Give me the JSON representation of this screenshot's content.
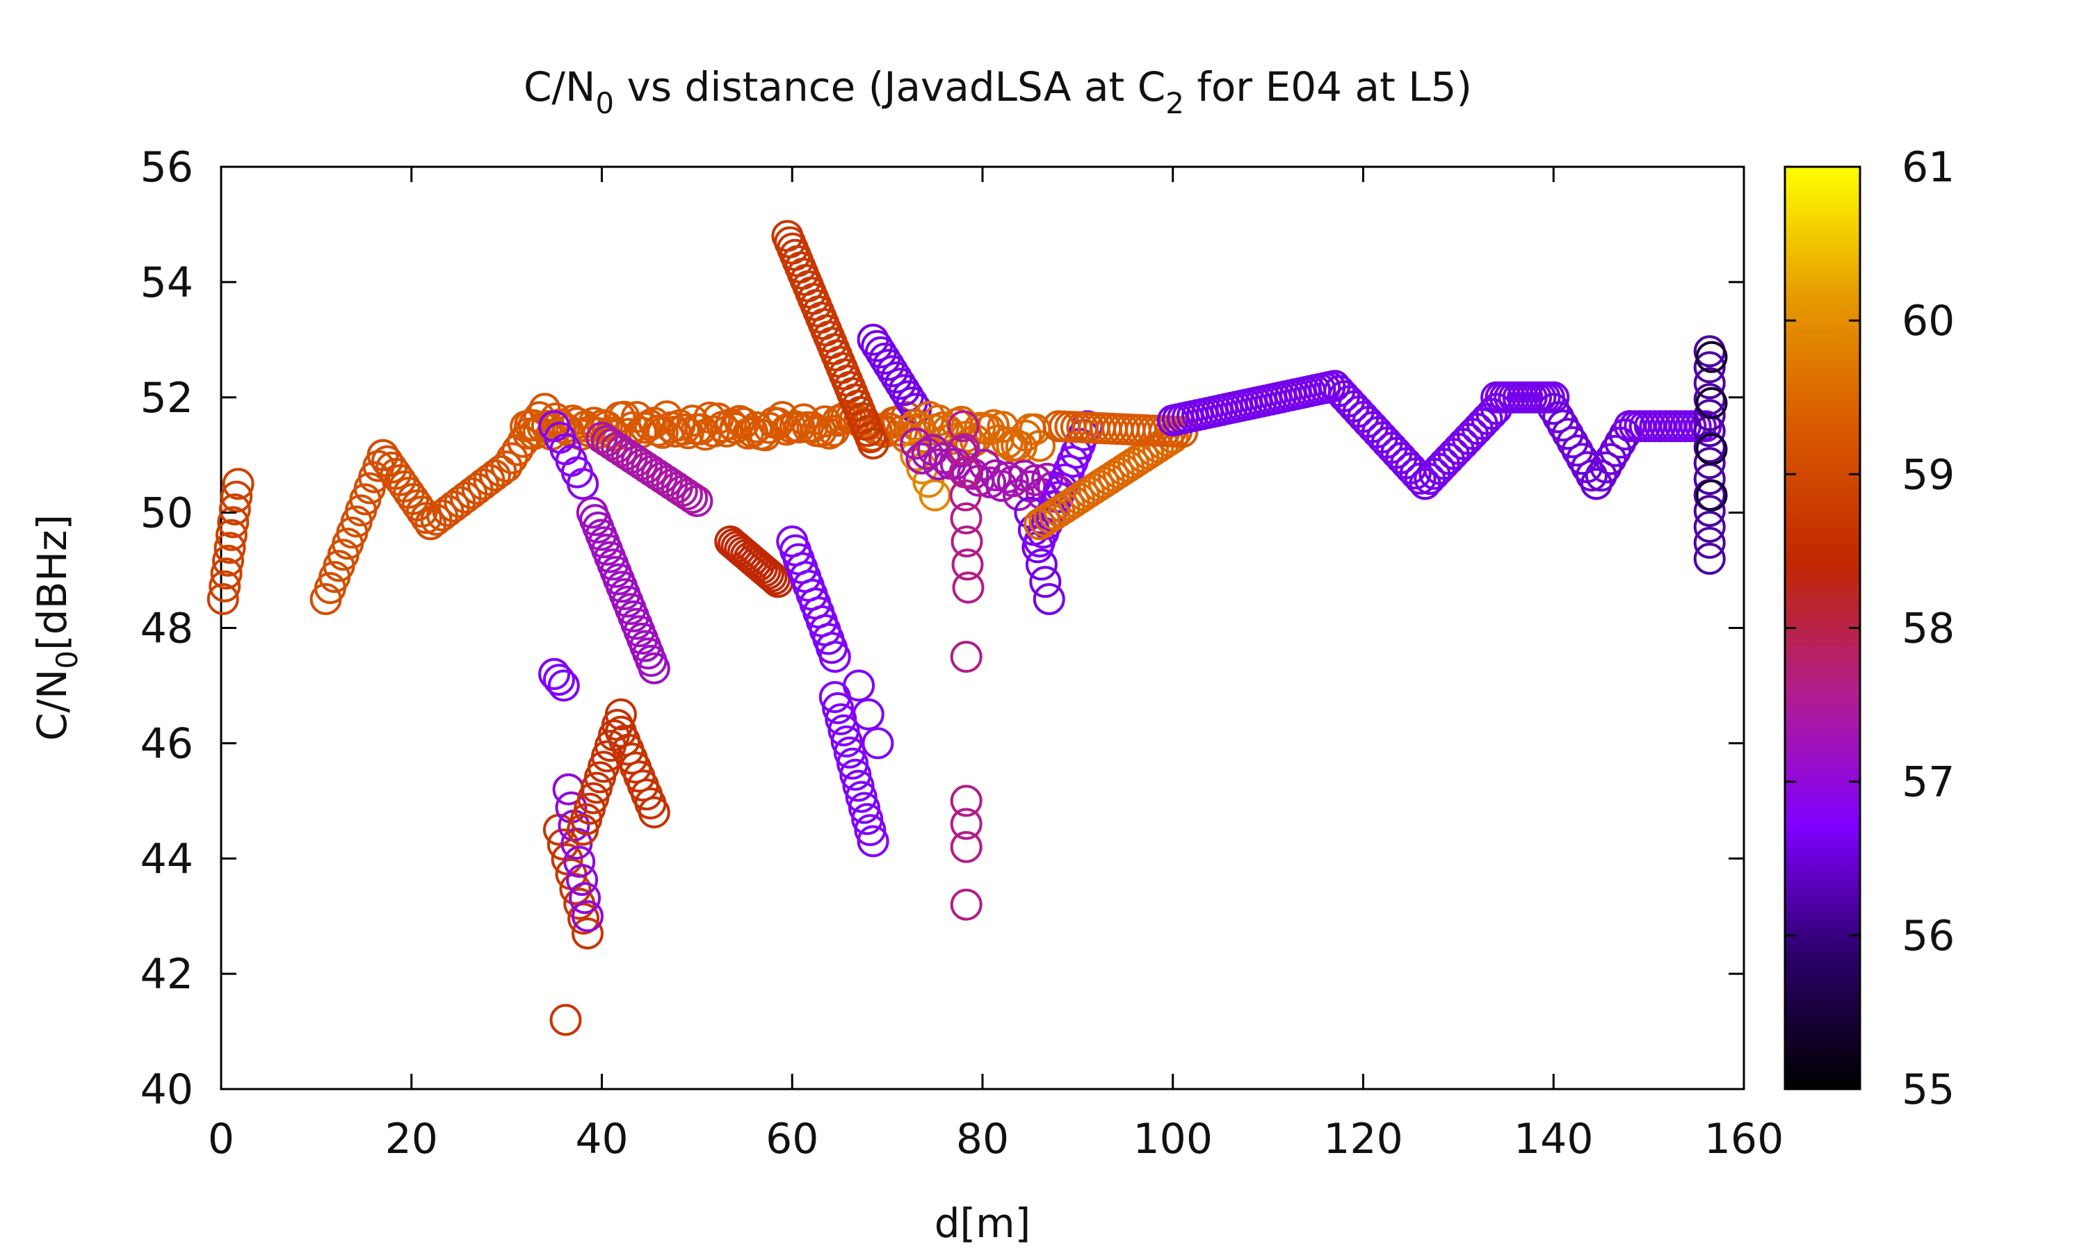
{
  "chart_data": {
    "type": "scatter",
    "title": {
      "main": "C/N",
      "main_sub": "0",
      "middle": " vs distance (JavadLSA at C",
      "middle_sub": "2",
      "end": " for E04 at L5)"
    },
    "xlabel": "d[m]",
    "ylabel": {
      "main": "C/N",
      "sub": "0",
      "unit": "[dBHz]"
    },
    "xlim": [
      0,
      160
    ],
    "ylim": [
      40,
      56
    ],
    "x_ticks": [
      "0",
      "20",
      "40",
      "60",
      "80",
      "100",
      "120",
      "140",
      "160"
    ],
    "y_ticks": [
      "40",
      "42",
      "44",
      "46",
      "48",
      "50",
      "52",
      "54",
      "56"
    ],
    "colorbar": {
      "range": [
        55,
        61
      ],
      "ticks": [
        "55",
        "56",
        "57",
        "58",
        "59",
        "60",
        "61"
      ],
      "palette": [
        "#000000",
        "#2a0068",
        "#8000ff",
        "#b21d8f",
        "#c02800",
        "#d85800",
        "#e69900",
        "#ffff00"
      ]
    },
    "marker": "open-circle",
    "grid": false,
    "legend": "none",
    "segments": [
      {
        "x0": 0.2,
        "x1": 1.8,
        "y0": 48.5,
        "y1": 50.5,
        "n": 10,
        "c": 58.9
      },
      {
        "x0": 11,
        "x1": 17,
        "y0": 48.5,
        "y1": 51,
        "n": 14,
        "c": 59.1
      },
      {
        "x0": 17,
        "x1": 22,
        "y0": 51,
        "y1": 49.8,
        "n": 12,
        "c": 59.1
      },
      {
        "x0": 22,
        "x1": 30,
        "y0": 49.8,
        "y1": 50.8,
        "n": 14,
        "c": 59.1
      },
      {
        "x0": 30,
        "x1": 34,
        "y0": 50.8,
        "y1": 51.8,
        "n": 8,
        "c": 59.2
      },
      {
        "x0": 32,
        "x1": 72,
        "y0": 51.5,
        "y1": 51.5,
        "n": 90,
        "c": 59.3,
        "jitter": 0.35
      },
      {
        "x0": 35,
        "x1": 38,
        "y0": 51.5,
        "y1": 50.5,
        "n": 6,
        "c": 56.8
      },
      {
        "x0": 40,
        "x1": 50,
        "y0": 51.3,
        "y1": 50.2,
        "n": 20,
        "c": 57.4
      },
      {
        "x0": 35,
        "x1": 36,
        "y0": 47.2,
        "y1": 47.0,
        "n": 3,
        "c": 56.7
      },
      {
        "x0": 39,
        "x1": 45.5,
        "y0": 50,
        "y1": 47.3,
        "n": 22,
        "c": 57.2
      },
      {
        "x0": 35.5,
        "x1": 38.5,
        "y0": 44.5,
        "y1": 42.7,
        "n": 8,
        "c": 58.7
      },
      {
        "x0": 36.2,
        "x1": 36.2,
        "y0": 41.2,
        "y1": 41.2,
        "n": 1,
        "c": 58.7
      },
      {
        "x0": 36.5,
        "x1": 38.5,
        "y0": 45.2,
        "y1": 43.0,
        "n": 8,
        "c": 57.0
      },
      {
        "x0": 38,
        "x1": 42,
        "y0": 44.5,
        "y1": 46.5,
        "n": 12,
        "c": 58.6
      },
      {
        "x0": 42,
        "x1": 45.5,
        "y0": 46.2,
        "y1": 44.8,
        "n": 10,
        "c": 58.6
      },
      {
        "x0": 53.5,
        "x1": 58.5,
        "y0": 49.5,
        "y1": 48.8,
        "n": 16,
        "c": 58.4
      },
      {
        "x0": 59.5,
        "x1": 68.5,
        "y0": 54.8,
        "y1": 51.2,
        "n": 34,
        "c": 58.7
      },
      {
        "x0": 60,
        "x1": 64.5,
        "y0": 49.5,
        "y1": 47.5,
        "n": 14,
        "c": 56.7
      },
      {
        "x0": 64.5,
        "x1": 68.5,
        "y0": 46.8,
        "y1": 44.3,
        "n": 14,
        "c": 56.7
      },
      {
        "x0": 67,
        "x1": 69,
        "y0": 47.0,
        "y1": 46.0,
        "n": 3,
        "c": 56.7
      },
      {
        "x0": 68.5,
        "x1": 73,
        "y0": 53.0,
        "y1": 51.8,
        "n": 12,
        "c": 56.6
      },
      {
        "x0": 72,
        "x1": 86,
        "y0": 51.5,
        "y1": 51.3,
        "n": 30,
        "c": 59.5,
        "jitter": 0.4
      },
      {
        "x0": 73,
        "x1": 75,
        "y0": 51.0,
        "y1": 50.3,
        "n": 4,
        "c": 59.9
      },
      {
        "x0": 73,
        "x1": 88,
        "y0": 51.2,
        "y1": 50.3,
        "n": 26,
        "c": 57.3,
        "jitter": 0.5
      },
      {
        "x0": 78,
        "x1": 78.5,
        "y0": 51.5,
        "y1": 48.7,
        "n": 8,
        "c": 57.6
      },
      {
        "x0": 78.3,
        "x1": 78.3,
        "y0": 47.5,
        "y1": 47.5,
        "n": 1,
        "c": 57.6
      },
      {
        "x0": 78.3,
        "x1": 78.3,
        "y0": 45.0,
        "y1": 44.2,
        "n": 3,
        "c": 57.6
      },
      {
        "x0": 78.3,
        "x1": 78.3,
        "y0": 43.2,
        "y1": 43.2,
        "n": 1,
        "c": 57.6
      },
      {
        "x0": 85,
        "x1": 87,
        "y0": 50.0,
        "y1": 48.5,
        "n": 6,
        "c": 56.6
      },
      {
        "x0": 86,
        "x1": 91,
        "y0": 49.5,
        "y1": 51.5,
        "n": 14,
        "c": 56.7
      },
      {
        "x0": 86,
        "x1": 100,
        "y0": 49.8,
        "y1": 51.3,
        "n": 28,
        "c": 59.5
      },
      {
        "x0": 88,
        "x1": 101,
        "y0": 51.5,
        "y1": 51.4,
        "n": 22,
        "c": 59.3
      },
      {
        "x0": 100,
        "x1": 117,
        "y0": 51.6,
        "y1": 52.2,
        "n": 34,
        "c": 56.6
      },
      {
        "x0": 117,
        "x1": 126.5,
        "y0": 52.2,
        "y1": 50.5,
        "n": 20,
        "c": 56.6
      },
      {
        "x0": 126.5,
        "x1": 134,
        "y0": 50.5,
        "y1": 51.8,
        "n": 16,
        "c": 56.6
      },
      {
        "x0": 134,
        "x1": 140,
        "y0": 52.0,
        "y1": 52.0,
        "n": 14,
        "c": 56.6
      },
      {
        "x0": 140,
        "x1": 144.5,
        "y0": 51.8,
        "y1": 50.5,
        "n": 10,
        "c": 56.5
      },
      {
        "x0": 144.5,
        "x1": 148,
        "y0": 50.5,
        "y1": 51.5,
        "n": 8,
        "c": 56.5
      },
      {
        "x0": 148,
        "x1": 156,
        "y0": 51.5,
        "y1": 51.5,
        "n": 16,
        "c": 56.6
      },
      {
        "x0": 156.4,
        "x1": 156.4,
        "y0": 52.8,
        "y1": 49.2,
        "n": 14,
        "c": 56.2
      },
      {
        "x0": 156.6,
        "x1": 156.6,
        "y0": 52.7,
        "y1": 50.3,
        "n": 4,
        "c": 55.4
      }
    ]
  }
}
